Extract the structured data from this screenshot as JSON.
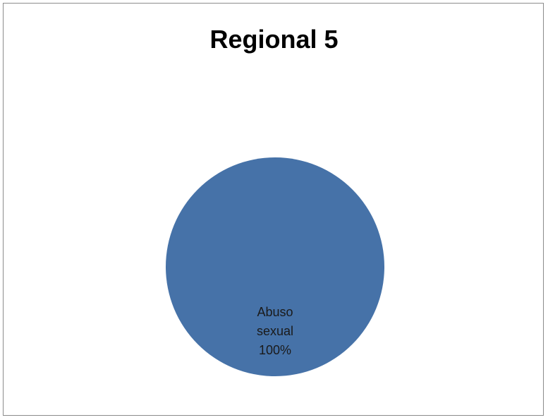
{
  "chart_data": {
    "type": "pie",
    "title": "Regional 5",
    "categories": [
      "Abuso sexual"
    ],
    "values": [
      100
    ],
    "data_labels": [
      {
        "category": "Abuso sexual",
        "percent": "100%"
      }
    ],
    "colors": [
      "#4672A8"
    ],
    "legend": "none"
  }
}
